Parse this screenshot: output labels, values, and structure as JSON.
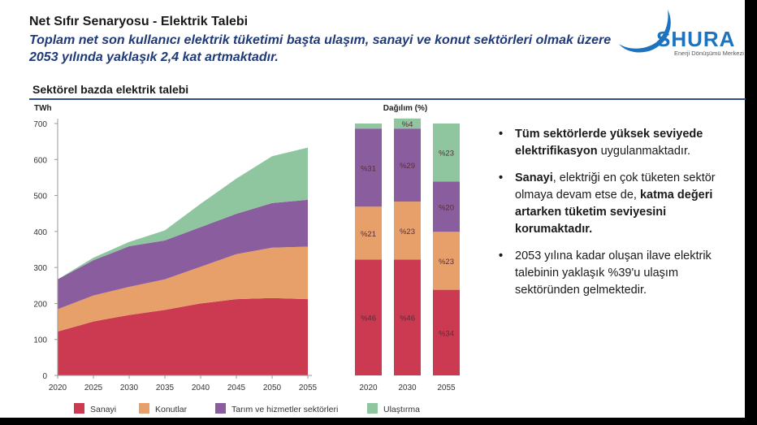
{
  "header": {
    "title": "Net Sıfır Senaryosu - Elektrik Talebi",
    "subtitle": "Toplam net son kullanıcı elektrik tüketimi başta ulaşım, sanayi ve konut sektörleri olmak üzere 2053 yılında yaklaşık 2,4 kat artmaktadır."
  },
  "logo": {
    "brand": "SHURA",
    "tagline": "Enerji Dönüşümü Merkezi",
    "colors": {
      "blue": "#1e73be",
      "orange": "#f28c28"
    }
  },
  "section_title": "Sektörel bazda elektrik talebi",
  "colors": {
    "Sanayi": "#cc3a51",
    "Konutlar": "#e8a06b",
    "Tarım ve hizmetler sektörleri": "#8a5d9e",
    "Ulaştırma": "#8fc59f"
  },
  "chart_data": [
    {
      "type": "area",
      "stacked": true,
      "ylabel": "TWh",
      "ylim": [
        0,
        700
      ],
      "yticks": [
        0,
        100,
        200,
        300,
        400,
        500,
        600,
        700
      ],
      "x": [
        "2020",
        "2025",
        "2030",
        "2035",
        "2040",
        "2045",
        "2050",
        "2055"
      ],
      "series": [
        {
          "name": "Sanayi",
          "values": [
            122,
            150,
            168,
            182,
            200,
            212,
            215,
            212
          ]
        },
        {
          "name": "Konutlar",
          "values": [
            62,
            72,
            78,
            85,
            102,
            125,
            140,
            146
          ]
        },
        {
          "name": "Tarım ve hizmetler sektörleri",
          "values": [
            83,
            98,
            113,
            108,
            110,
            112,
            124,
            130
          ]
        },
        {
          "name": "Ulaştırma",
          "values": [
            0,
            7,
            12,
            28,
            65,
            98,
            130,
            145
          ]
        }
      ],
      "grid": false
    },
    {
      "type": "bar",
      "stacked": true,
      "percent": true,
      "title": "Dağılım (%)",
      "categories": [
        "2020",
        "2030",
        "2055"
      ],
      "series": [
        {
          "name": "Sanayi",
          "values": [
            46,
            46,
            34
          ],
          "labels": [
            "%46",
            "%46",
            "%34"
          ]
        },
        {
          "name": "Konutlar",
          "values": [
            21,
            23,
            23
          ],
          "labels": [
            "%21",
            "%23",
            "%23"
          ]
        },
        {
          "name": "Tarım ve hizmetler sektörleri",
          "values": [
            31,
            29,
            20
          ],
          "labels": [
            "%31",
            "%29",
            "%20"
          ]
        },
        {
          "name": "Ulaştırma",
          "values": [
            2,
            4,
            23
          ],
          "labels": [
            "",
            "%4",
            "%23"
          ]
        }
      ]
    }
  ],
  "legend": [
    "Sanayi",
    "Konutlar",
    "Tarım ve hizmetler sektörleri",
    "Ulaştırma"
  ],
  "bullets": [
    {
      "b1": "Tüm sektörlerde yüksek seviyede elektrifikasyon",
      "t1": " uygulanmaktadır."
    },
    {
      "b1": "Sanayi",
      "t1": ", elektriği en çok tüketen sektör olmaya devam etse de, ",
      "b2": "katma değeri artarken tüketim seviyesini korumaktadır."
    },
    {
      "t1": "2053 yılına kadar oluşan ilave elektrik talebinin yaklaşık %39'u ulaşım sektöründen gelmektedir."
    }
  ]
}
